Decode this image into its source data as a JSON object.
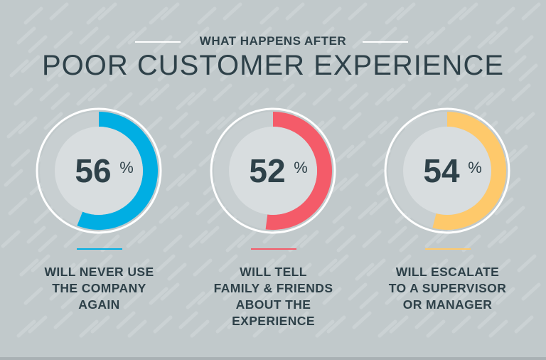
{
  "header": {
    "subtitle": "WHAT HAPPENS AFTER",
    "title": "POOR CUSTOMER EXPERIENCE"
  },
  "colors": {
    "background": "#c1c9cb",
    "text": "#2e4149",
    "blue": "#00aee3",
    "red": "#f45b69",
    "yellow": "#fec96b",
    "track": "#c8cfd1",
    "disk": "#d8dddf"
  },
  "chart_data": {
    "type": "pie",
    "items": [
      {
        "value": 56,
        "value_label": "56",
        "unit": "%",
        "color": "#00aee3",
        "label_lines": [
          "WILL NEVER USE",
          "THE COMPANY",
          "AGAIN"
        ]
      },
      {
        "value": 52,
        "value_label": "52",
        "unit": "%",
        "color": "#f45b69",
        "label_lines": [
          "WILL TELL",
          "FAMILY & FRIENDS",
          "ABOUT THE",
          "EXPERIENCE"
        ]
      },
      {
        "value": 54,
        "value_label": "54",
        "unit": "%",
        "color": "#fec96b",
        "label_lines": [
          "WILL ESCALATE",
          "TO A SUPERVISOR",
          "OR MANAGER"
        ]
      }
    ]
  }
}
